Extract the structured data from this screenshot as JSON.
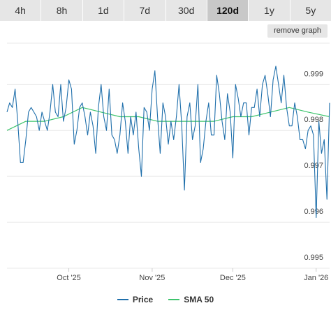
{
  "tabs": [
    {
      "label": "4h",
      "active": false
    },
    {
      "label": "8h",
      "active": false
    },
    {
      "label": "1d",
      "active": false
    },
    {
      "label": "7d",
      "active": false
    },
    {
      "label": "30d",
      "active": false
    },
    {
      "label": "120d",
      "active": true
    },
    {
      "label": "1y",
      "active": false
    },
    {
      "label": "5y",
      "active": false
    }
  ],
  "remove_graph_label": "remove graph",
  "chart_data": {
    "type": "line",
    "title": "",
    "xlabel": "",
    "ylabel": "",
    "ylim": [
      0.995,
      0.9999
    ],
    "y_ticks": [
      "0.999",
      "0.998",
      "0.997",
      "0.996",
      "0.995"
    ],
    "y_tick_values": [
      0.999,
      0.998,
      0.997,
      0.996,
      0.995
    ],
    "x_ticks": [
      "Oct '25",
      "Nov '25",
      "Dec '25",
      "Jan '26"
    ],
    "x_tick_values": [
      "2025-10-01",
      "2025-11-01",
      "2025-12-01",
      "2026-01-01"
    ],
    "x_range": [
      "2025-09-08",
      "2026-01-06"
    ],
    "grid": true,
    "legend_position": "bottom",
    "series": [
      {
        "name": "Price",
        "color": "#1f6fab",
        "points": [
          [
            "2025-09-08",
            0.9984
          ],
          [
            "2025-09-09",
            0.9986
          ],
          [
            "2025-09-10",
            0.9985
          ],
          [
            "2025-09-11",
            0.9989
          ],
          [
            "2025-09-12",
            0.9982
          ],
          [
            "2025-09-13",
            0.9973
          ],
          [
            "2025-09-14",
            0.9973
          ],
          [
            "2025-09-15",
            0.9978
          ],
          [
            "2025-09-16",
            0.9984
          ],
          [
            "2025-09-17",
            0.9985
          ],
          [
            "2025-09-18",
            0.9984
          ],
          [
            "2025-09-19",
            0.9983
          ],
          [
            "2025-09-20",
            0.998
          ],
          [
            "2025-09-21",
            0.9984
          ],
          [
            "2025-09-22",
            0.9982
          ],
          [
            "2025-09-23",
            0.998
          ],
          [
            "2025-09-24",
            0.9984
          ],
          [
            "2025-09-25",
            0.999
          ],
          [
            "2025-09-26",
            0.9984
          ],
          [
            "2025-09-27",
            0.9983
          ],
          [
            "2025-09-28",
            0.999
          ],
          [
            "2025-09-29",
            0.9982
          ],
          [
            "2025-09-30",
            0.9985
          ],
          [
            "2025-10-01",
            0.9991
          ],
          [
            "2025-10-02",
            0.9989
          ],
          [
            "2025-10-03",
            0.9977
          ],
          [
            "2025-10-04",
            0.998
          ],
          [
            "2025-10-05",
            0.9985
          ],
          [
            "2025-10-06",
            0.9986
          ],
          [
            "2025-10-07",
            0.9983
          ],
          [
            "2025-10-08",
            0.9979
          ],
          [
            "2025-10-09",
            0.9984
          ],
          [
            "2025-10-10",
            0.9981
          ],
          [
            "2025-10-11",
            0.9975
          ],
          [
            "2025-10-12",
            0.9985
          ],
          [
            "2025-10-13",
            0.999
          ],
          [
            "2025-10-14",
            0.9983
          ],
          [
            "2025-10-15",
            0.998
          ],
          [
            "2025-10-16",
            0.9989
          ],
          [
            "2025-10-17",
            0.9979
          ],
          [
            "2025-10-18",
            0.9978
          ],
          [
            "2025-10-19",
            0.9975
          ],
          [
            "2025-10-20",
            0.9979
          ],
          [
            "2025-10-21",
            0.9986
          ],
          [
            "2025-10-22",
            0.9982
          ],
          [
            "2025-10-23",
            0.9975
          ],
          [
            "2025-10-24",
            0.9983
          ],
          [
            "2025-10-25",
            0.9979
          ],
          [
            "2025-10-26",
            0.9984
          ],
          [
            "2025-10-27",
            0.9976
          ],
          [
            "2025-10-28",
            0.997
          ],
          [
            "2025-10-29",
            0.9985
          ],
          [
            "2025-10-30",
            0.9984
          ],
          [
            "2025-10-31",
            0.998
          ],
          [
            "2025-11-01",
            0.9989
          ],
          [
            "2025-11-02",
            0.9993
          ],
          [
            "2025-11-03",
            0.9983
          ],
          [
            "2025-11-04",
            0.9975
          ],
          [
            "2025-11-05",
            0.9986
          ],
          [
            "2025-11-06",
            0.9983
          ],
          [
            "2025-11-07",
            0.9977
          ],
          [
            "2025-11-08",
            0.9982
          ],
          [
            "2025-11-09",
            0.9978
          ],
          [
            "2025-11-10",
            0.9983
          ],
          [
            "2025-11-11",
            0.999
          ],
          [
            "2025-11-12",
            0.9981
          ],
          [
            "2025-11-13",
            0.9967
          ],
          [
            "2025-11-14",
            0.9983
          ],
          [
            "2025-11-15",
            0.9986
          ],
          [
            "2025-11-16",
            0.9978
          ],
          [
            "2025-11-17",
            0.9981
          ],
          [
            "2025-11-18",
            0.999
          ],
          [
            "2025-11-19",
            0.9973
          ],
          [
            "2025-11-20",
            0.9976
          ],
          [
            "2025-11-21",
            0.9982
          ],
          [
            "2025-11-22",
            0.9986
          ],
          [
            "2025-11-23",
            0.9979
          ],
          [
            "2025-11-24",
            0.9979
          ],
          [
            "2025-11-25",
            0.9992
          ],
          [
            "2025-11-26",
            0.9988
          ],
          [
            "2025-11-27",
            0.9982
          ],
          [
            "2025-11-28",
            0.9978
          ],
          [
            "2025-11-29",
            0.9988
          ],
          [
            "2025-11-30",
            0.9984
          ],
          [
            "2025-12-01",
            0.9974
          ],
          [
            "2025-12-02",
            0.999
          ],
          [
            "2025-12-03",
            0.9987
          ],
          [
            "2025-12-04",
            0.9983
          ],
          [
            "2025-12-05",
            0.9986
          ],
          [
            "2025-12-06",
            0.9986
          ],
          [
            "2025-12-07",
            0.9979
          ],
          [
            "2025-12-08",
            0.9985
          ],
          [
            "2025-12-09",
            0.9985
          ],
          [
            "2025-12-10",
            0.9989
          ],
          [
            "2025-12-11",
            0.9983
          ],
          [
            "2025-12-12",
            0.999
          ],
          [
            "2025-12-13",
            0.9992
          ],
          [
            "2025-12-14",
            0.9988
          ],
          [
            "2025-12-15",
            0.9983
          ],
          [
            "2025-12-16",
            0.9991
          ],
          [
            "2025-12-17",
            0.9994
          ],
          [
            "2025-12-18",
            0.999
          ],
          [
            "2025-12-19",
            0.9986
          ],
          [
            "2025-12-20",
            0.9992
          ],
          [
            "2025-12-21",
            0.9985
          ],
          [
            "2025-12-22",
            0.9981
          ],
          [
            "2025-12-23",
            0.9981
          ],
          [
            "2025-12-24",
            0.9986
          ],
          [
            "2025-12-25",
            0.9983
          ],
          [
            "2025-12-26",
            0.9978
          ],
          [
            "2025-12-27",
            0.9978
          ],
          [
            "2025-12-28",
            0.9976
          ],
          [
            "2025-12-29",
            0.998
          ],
          [
            "2025-12-30",
            0.9981
          ],
          [
            "2025-12-31",
            0.9979
          ],
          [
            "2026-01-01",
            0.9961
          ],
          [
            "2026-01-02",
            0.9982
          ],
          [
            "2026-01-03",
            0.9975
          ],
          [
            "2026-01-04",
            0.9978
          ],
          [
            "2026-01-05",
            0.9965
          ],
          [
            "2026-01-06",
            0.9986
          ]
        ]
      },
      {
        "name": "SMA 50",
        "color": "#3ec46d",
        "points": [
          [
            "2025-09-08",
            0.998
          ],
          [
            "2025-09-15",
            0.9982
          ],
          [
            "2025-09-22",
            0.9982
          ],
          [
            "2025-09-29",
            0.9983
          ],
          [
            "2025-10-06",
            0.9985
          ],
          [
            "2025-10-13",
            0.9984
          ],
          [
            "2025-10-20",
            0.9983
          ],
          [
            "2025-10-27",
            0.9983
          ],
          [
            "2025-11-03",
            0.9982
          ],
          [
            "2025-11-10",
            0.9982
          ],
          [
            "2025-11-17",
            0.9982
          ],
          [
            "2025-11-24",
            0.9982
          ],
          [
            "2025-12-01",
            0.9983
          ],
          [
            "2025-12-08",
            0.9983
          ],
          [
            "2025-12-15",
            0.9984
          ],
          [
            "2025-12-22",
            0.9985
          ],
          [
            "2025-12-29",
            0.9984
          ],
          [
            "2026-01-06",
            0.9983
          ]
        ]
      }
    ]
  }
}
